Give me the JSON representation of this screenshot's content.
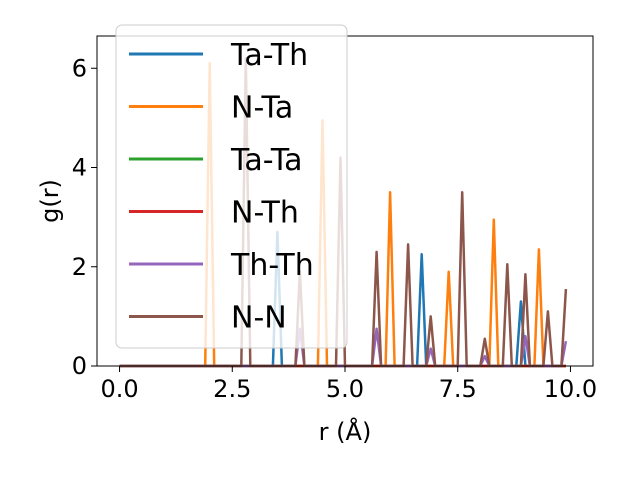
{
  "chart_data": {
    "type": "line",
    "xlabel": "r (Å)",
    "ylabel": "g(r)",
    "xlim": [
      -0.5,
      10.5
    ],
    "ylim": [
      0,
      6.65
    ],
    "xticks": [
      0.0,
      2.5,
      5.0,
      7.5,
      10.0
    ],
    "xtick_labels": [
      "0.0",
      "2.5",
      "5.0",
      "7.5",
      "10.0"
    ],
    "yticks": [
      0,
      2,
      4,
      6
    ],
    "ytick_labels": [
      "0",
      "2",
      "4",
      "6"
    ],
    "grid": false,
    "legend_position": "top-left",
    "series": [
      {
        "name": "Ta-Th",
        "color": "#1f77b4",
        "x": [
          0,
          3.4,
          3.5,
          3.6,
          6.6,
          6.7,
          6.8,
          8.8,
          8.9,
          9.0,
          9.9
        ],
        "y": [
          0,
          0,
          2.7,
          0,
          0,
          2.25,
          0,
          0,
          1.3,
          0,
          0
        ]
      },
      {
        "name": "N-Ta",
        "color": "#ff7f0e",
        "x": [
          0,
          1.9,
          2.0,
          2.1,
          4.4,
          4.5,
          4.6,
          5.9,
          6.0,
          6.1,
          7.2,
          7.3,
          7.4,
          8.2,
          8.3,
          8.4,
          9.2,
          9.3,
          9.4,
          9.9
        ],
        "y": [
          0,
          0,
          6.1,
          0,
          0,
          4.95,
          0,
          0,
          3.5,
          0,
          0,
          1.9,
          0,
          0,
          2.95,
          0,
          0,
          2.35,
          0,
          0
        ]
      },
      {
        "name": "Ta-Ta",
        "color": "#2ca02c",
        "x": [
          0,
          9.9
        ],
        "y": [
          0,
          0
        ]
      },
      {
        "name": "N-Th",
        "color": "#d62728",
        "x": [
          0,
          9.9
        ],
        "y": [
          0,
          0
        ]
      },
      {
        "name": "Th-Th",
        "color": "#9467bd",
        "x": [
          0,
          3.9,
          4.0,
          4.1,
          5.6,
          5.7,
          5.8,
          6.8,
          6.9,
          7.0,
          8.0,
          8.1,
          8.2,
          8.9,
          9.0,
          9.1,
          9.8,
          9.9
        ],
        "y": [
          0,
          0,
          0.75,
          0,
          0,
          0.75,
          0,
          0,
          0.35,
          0,
          0,
          0.2,
          0,
          0,
          0.6,
          0,
          0,
          0.5
        ]
      },
      {
        "name": "N-N",
        "color": "#8c564b",
        "x": [
          0,
          2.7,
          2.8,
          2.9,
          3.9,
          4.0,
          4.1,
          4.8,
          4.9,
          5.0,
          5.6,
          5.7,
          5.8,
          6.3,
          6.4,
          6.5,
          6.8,
          6.9,
          7.0,
          7.5,
          7.6,
          7.7,
          8.0,
          8.1,
          8.2,
          8.5,
          8.6,
          8.7,
          8.9,
          9.0,
          9.1,
          9.4,
          9.5,
          9.6,
          9.8,
          9.9
        ],
        "y": [
          0,
          0,
          6.2,
          0,
          0,
          1.9,
          0,
          0,
          4.2,
          0,
          0,
          2.3,
          0,
          0,
          2.45,
          0,
          0,
          1.0,
          0,
          0,
          3.5,
          0,
          0,
          0.55,
          0,
          0,
          2.05,
          0,
          0,
          1.85,
          0,
          0,
          1.1,
          0,
          0,
          1.55
        ]
      }
    ]
  }
}
